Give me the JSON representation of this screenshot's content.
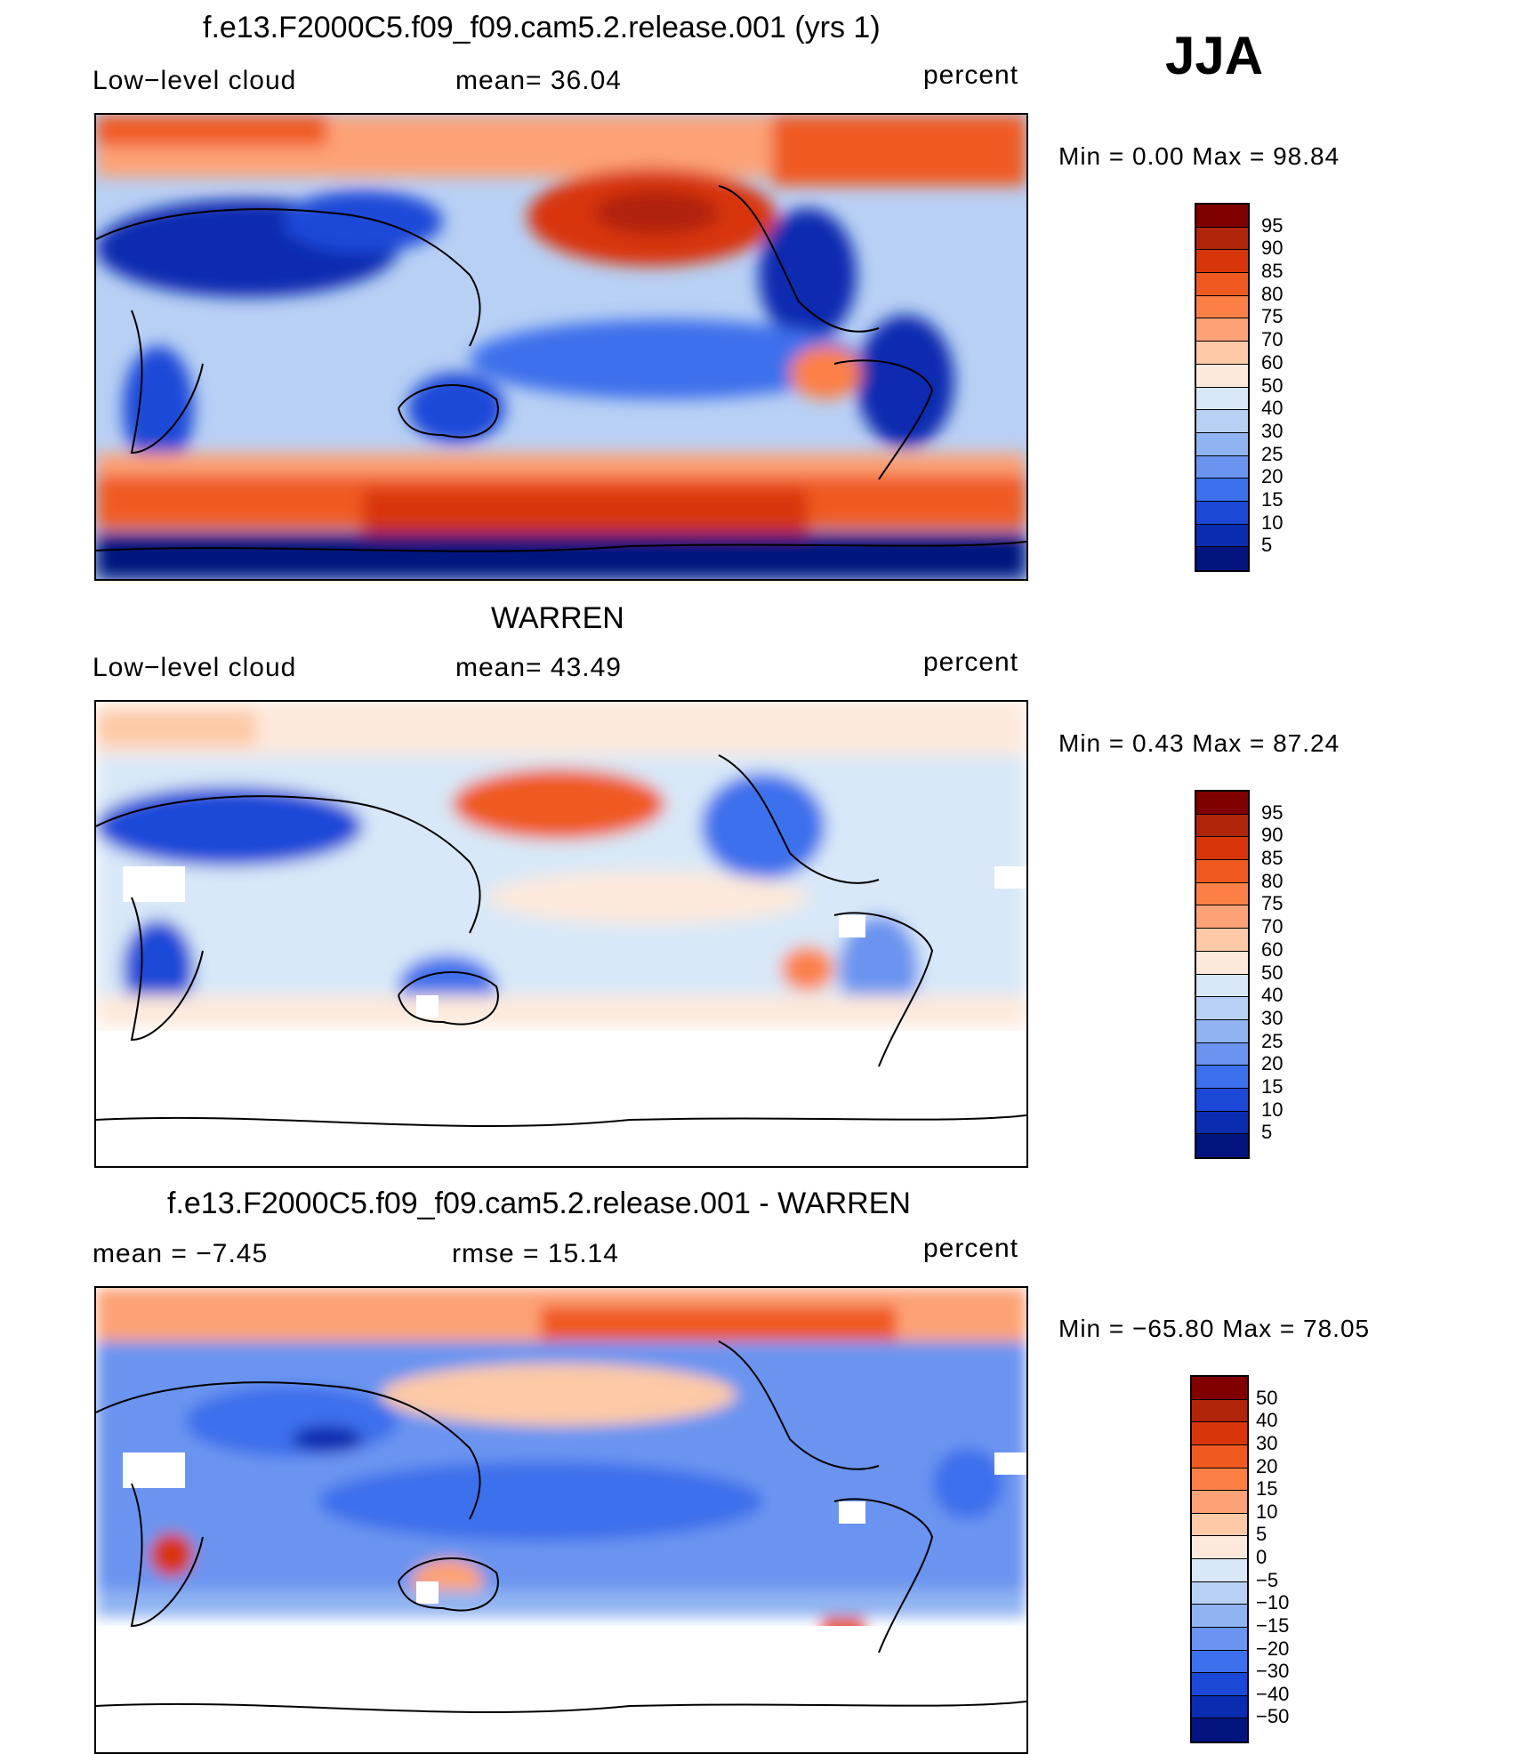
{
  "season": "JJA",
  "panels": [
    {
      "title": "f.e13.F2000C5.f09_f09.cam5.2.release.001 (yrs 1)",
      "left_label": "Low−level cloud",
      "center_label": "mean=   36.04",
      "right_label": "percent",
      "minmax": "Min  =     0.00  Max  =    98.84",
      "colorbar_labels": [
        "95",
        "90",
        "85",
        "80",
        "75",
        "70",
        "60",
        "50",
        "40",
        "30",
        "25",
        "20",
        "15",
        "10",
        "5"
      ],
      "colorbar_colors": [
        "#800000",
        "#b0240a",
        "#d8360a",
        "#f05a20",
        "#fc8046",
        "#fda276",
        "#fdc9a6",
        "#fde9dc",
        "#d8e8f8",
        "#b8d0f4",
        "#90b4f2",
        "#6a94f0",
        "#3c70ec",
        "#1c48d8",
        "#0a2cb0",
        "#02157e"
      ]
    },
    {
      "title": "WARREN",
      "left_label": "Low−level cloud",
      "center_label": "mean=   43.49",
      "right_label": "percent",
      "minmax": "Min  =     0.43  Max  =    87.24",
      "colorbar_labels": [
        "95",
        "90",
        "85",
        "80",
        "75",
        "70",
        "60",
        "50",
        "40",
        "30",
        "25",
        "20",
        "15",
        "10",
        "5"
      ],
      "colorbar_colors": [
        "#800000",
        "#b0240a",
        "#d8360a",
        "#f05a20",
        "#fc8046",
        "#fda276",
        "#fdc9a6",
        "#fde9dc",
        "#d8e8f8",
        "#b8d0f4",
        "#90b4f2",
        "#6a94f0",
        "#3c70ec",
        "#1c48d8",
        "#0a2cb0",
        "#02157e"
      ]
    },
    {
      "title": "f.e13.F2000C5.f09_f09.cam5.2.release.001 - WARREN",
      "left_label": "mean  =    −7.45",
      "center_label": "rmse  =    15.14",
      "right_label": "percent",
      "minmax": "Min  =  −65.80  Max  =    78.05",
      "colorbar_labels": [
        "50",
        "40",
        "30",
        "20",
        "15",
        "10",
        "5",
        "0",
        "−5",
        "−10",
        "−15",
        "−20",
        "−30",
        "−40",
        "−50"
      ],
      "colorbar_colors": [
        "#800000",
        "#b0240a",
        "#d8360a",
        "#f05a20",
        "#fc8046",
        "#fda276",
        "#fdc9a6",
        "#fde9dc",
        "#d8e8f8",
        "#b8d0f4",
        "#90b4f2",
        "#6a94f0",
        "#3c70ec",
        "#1c48d8",
        "#0a2cb0",
        "#02157e"
      ]
    }
  ]
}
